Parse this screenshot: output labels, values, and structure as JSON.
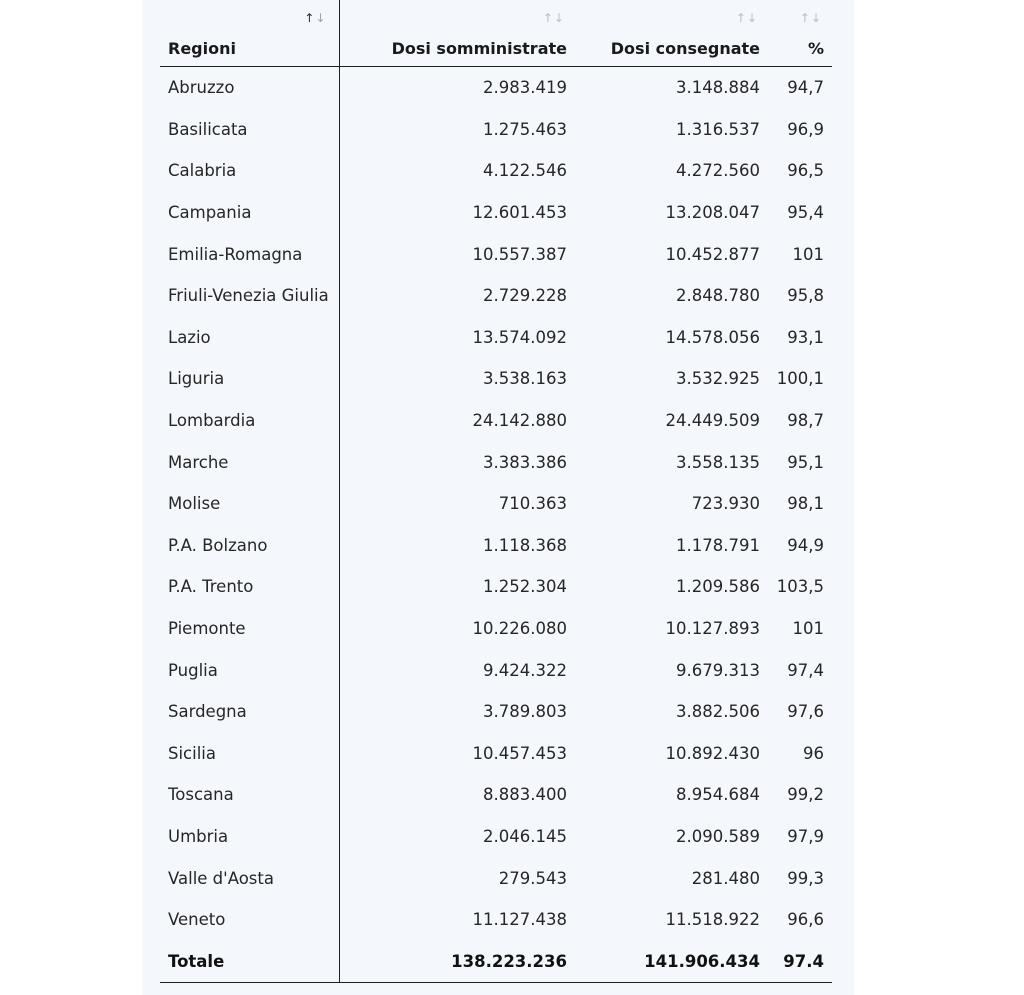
{
  "table": {
    "headers": {
      "region": "Regioni",
      "administered": "Dosi somministrate",
      "delivered": "Dosi consegnate",
      "percent": "%"
    },
    "sort_glyph_up": "↑",
    "sort_glyph_down": "↓",
    "rows": [
      {
        "region": "Abruzzo",
        "administered": "2.983.419",
        "delivered": "3.148.884",
        "percent": "94,7"
      },
      {
        "region": "Basilicata",
        "administered": "1.275.463",
        "delivered": "1.316.537",
        "percent": "96,9"
      },
      {
        "region": "Calabria",
        "administered": "4.122.546",
        "delivered": "4.272.560",
        "percent": "96,5"
      },
      {
        "region": "Campania",
        "administered": "12.601.453",
        "delivered": "13.208.047",
        "percent": "95,4"
      },
      {
        "region": "Emilia-Romagna",
        "administered": "10.557.387",
        "delivered": "10.452.877",
        "percent": "101"
      },
      {
        "region": "Friuli-Venezia Giulia",
        "administered": "2.729.228",
        "delivered": "2.848.780",
        "percent": "95,8"
      },
      {
        "region": "Lazio",
        "administered": "13.574.092",
        "delivered": "14.578.056",
        "percent": "93,1"
      },
      {
        "region": "Liguria",
        "administered": "3.538.163",
        "delivered": "3.532.925",
        "percent": "100,1"
      },
      {
        "region": "Lombardia",
        "administered": "24.142.880",
        "delivered": "24.449.509",
        "percent": "98,7"
      },
      {
        "region": "Marche",
        "administered": "3.383.386",
        "delivered": "3.558.135",
        "percent": "95,1"
      },
      {
        "region": "Molise",
        "administered": "710.363",
        "delivered": "723.930",
        "percent": "98,1"
      },
      {
        "region": "P.A. Bolzano",
        "administered": "1.118.368",
        "delivered": "1.178.791",
        "percent": "94,9"
      },
      {
        "region": "P.A. Trento",
        "administered": "1.252.304",
        "delivered": "1.209.586",
        "percent": "103,5"
      },
      {
        "region": "Piemonte",
        "administered": "10.226.080",
        "delivered": "10.127.893",
        "percent": "101"
      },
      {
        "region": "Puglia",
        "administered": "9.424.322",
        "delivered": "9.679.313",
        "percent": "97,4"
      },
      {
        "region": "Sardegna",
        "administered": "3.789.803",
        "delivered": "3.882.506",
        "percent": "97,6"
      },
      {
        "region": "Sicilia",
        "administered": "10.457.453",
        "delivered": "10.892.430",
        "percent": "96"
      },
      {
        "region": "Toscana",
        "administered": "8.883.400",
        "delivered": "8.954.684",
        "percent": "99,2"
      },
      {
        "region": "Umbria",
        "administered": "2.046.145",
        "delivered": "2.090.589",
        "percent": "97,9"
      },
      {
        "region": "Valle d'Aosta",
        "administered": "279.543",
        "delivered": "281.480",
        "percent": "99,3"
      },
      {
        "region": "Veneto",
        "administered": "11.127.438",
        "delivered": "11.518.922",
        "percent": "96,6"
      }
    ],
    "total": {
      "region": "Totale",
      "administered": "138.223.236",
      "delivered": "141.906.434",
      "percent": "97.4"
    }
  }
}
